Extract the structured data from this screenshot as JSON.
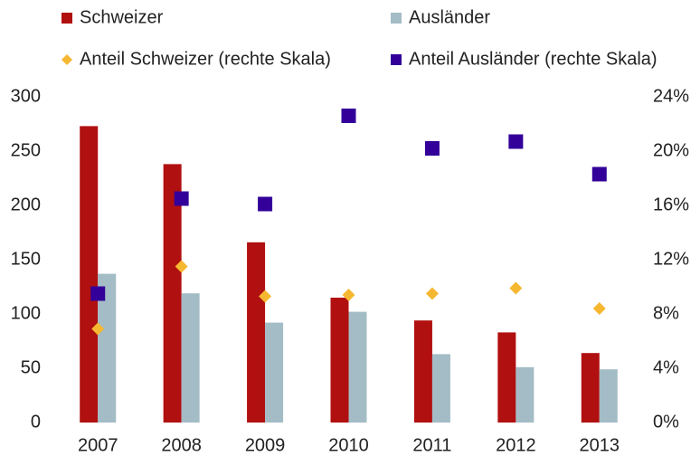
{
  "chart_data": {
    "type": "bar",
    "categories": [
      "2007",
      "2008",
      "2009",
      "2010",
      "2011",
      "2012",
      "2013"
    ],
    "series": [
      {
        "name": "Schweizer",
        "color": "#b0100f",
        "values": [
          273,
          238,
          166,
          115,
          94,
          83,
          64
        ]
      },
      {
        "name": "Ausländer",
        "color": "#a3bcc6",
        "values": [
          137,
          119,
          92,
          102,
          63,
          51,
          49
        ]
      },
      {
        "name": "Anteil Schweizer (rechte Skala)",
        "type": "scatter",
        "marker": "diamond",
        "axis": "y2",
        "color": "#f6b731",
        "values": [
          6.9,
          11.5,
          9.3,
          9.4,
          9.5,
          9.9,
          8.4
        ]
      },
      {
        "name": "Anteil Ausländer (rechte Skala)",
        "type": "scatter",
        "marker": "square",
        "axis": "y2",
        "color": "#330099",
        "values": [
          9.5,
          16.5,
          16.1,
          22.6,
          20.2,
          20.7,
          18.3
        ]
      }
    ],
    "ylim": [
      0,
      300
    ],
    "yticks": [
      0,
      50,
      100,
      150,
      200,
      250,
      300
    ],
    "y2lim": [
      0,
      24
    ],
    "y2ticks": [
      {
        "value": 0,
        "label": "0%"
      },
      {
        "value": 4,
        "label": "4%"
      },
      {
        "value": 8,
        "label": "8%"
      },
      {
        "value": 12,
        "label": "12%"
      },
      {
        "value": 16,
        "label": "16%"
      },
      {
        "value": 20,
        "label": "20%"
      },
      {
        "value": 24,
        "label": "24%"
      }
    ],
    "grid": false
  }
}
